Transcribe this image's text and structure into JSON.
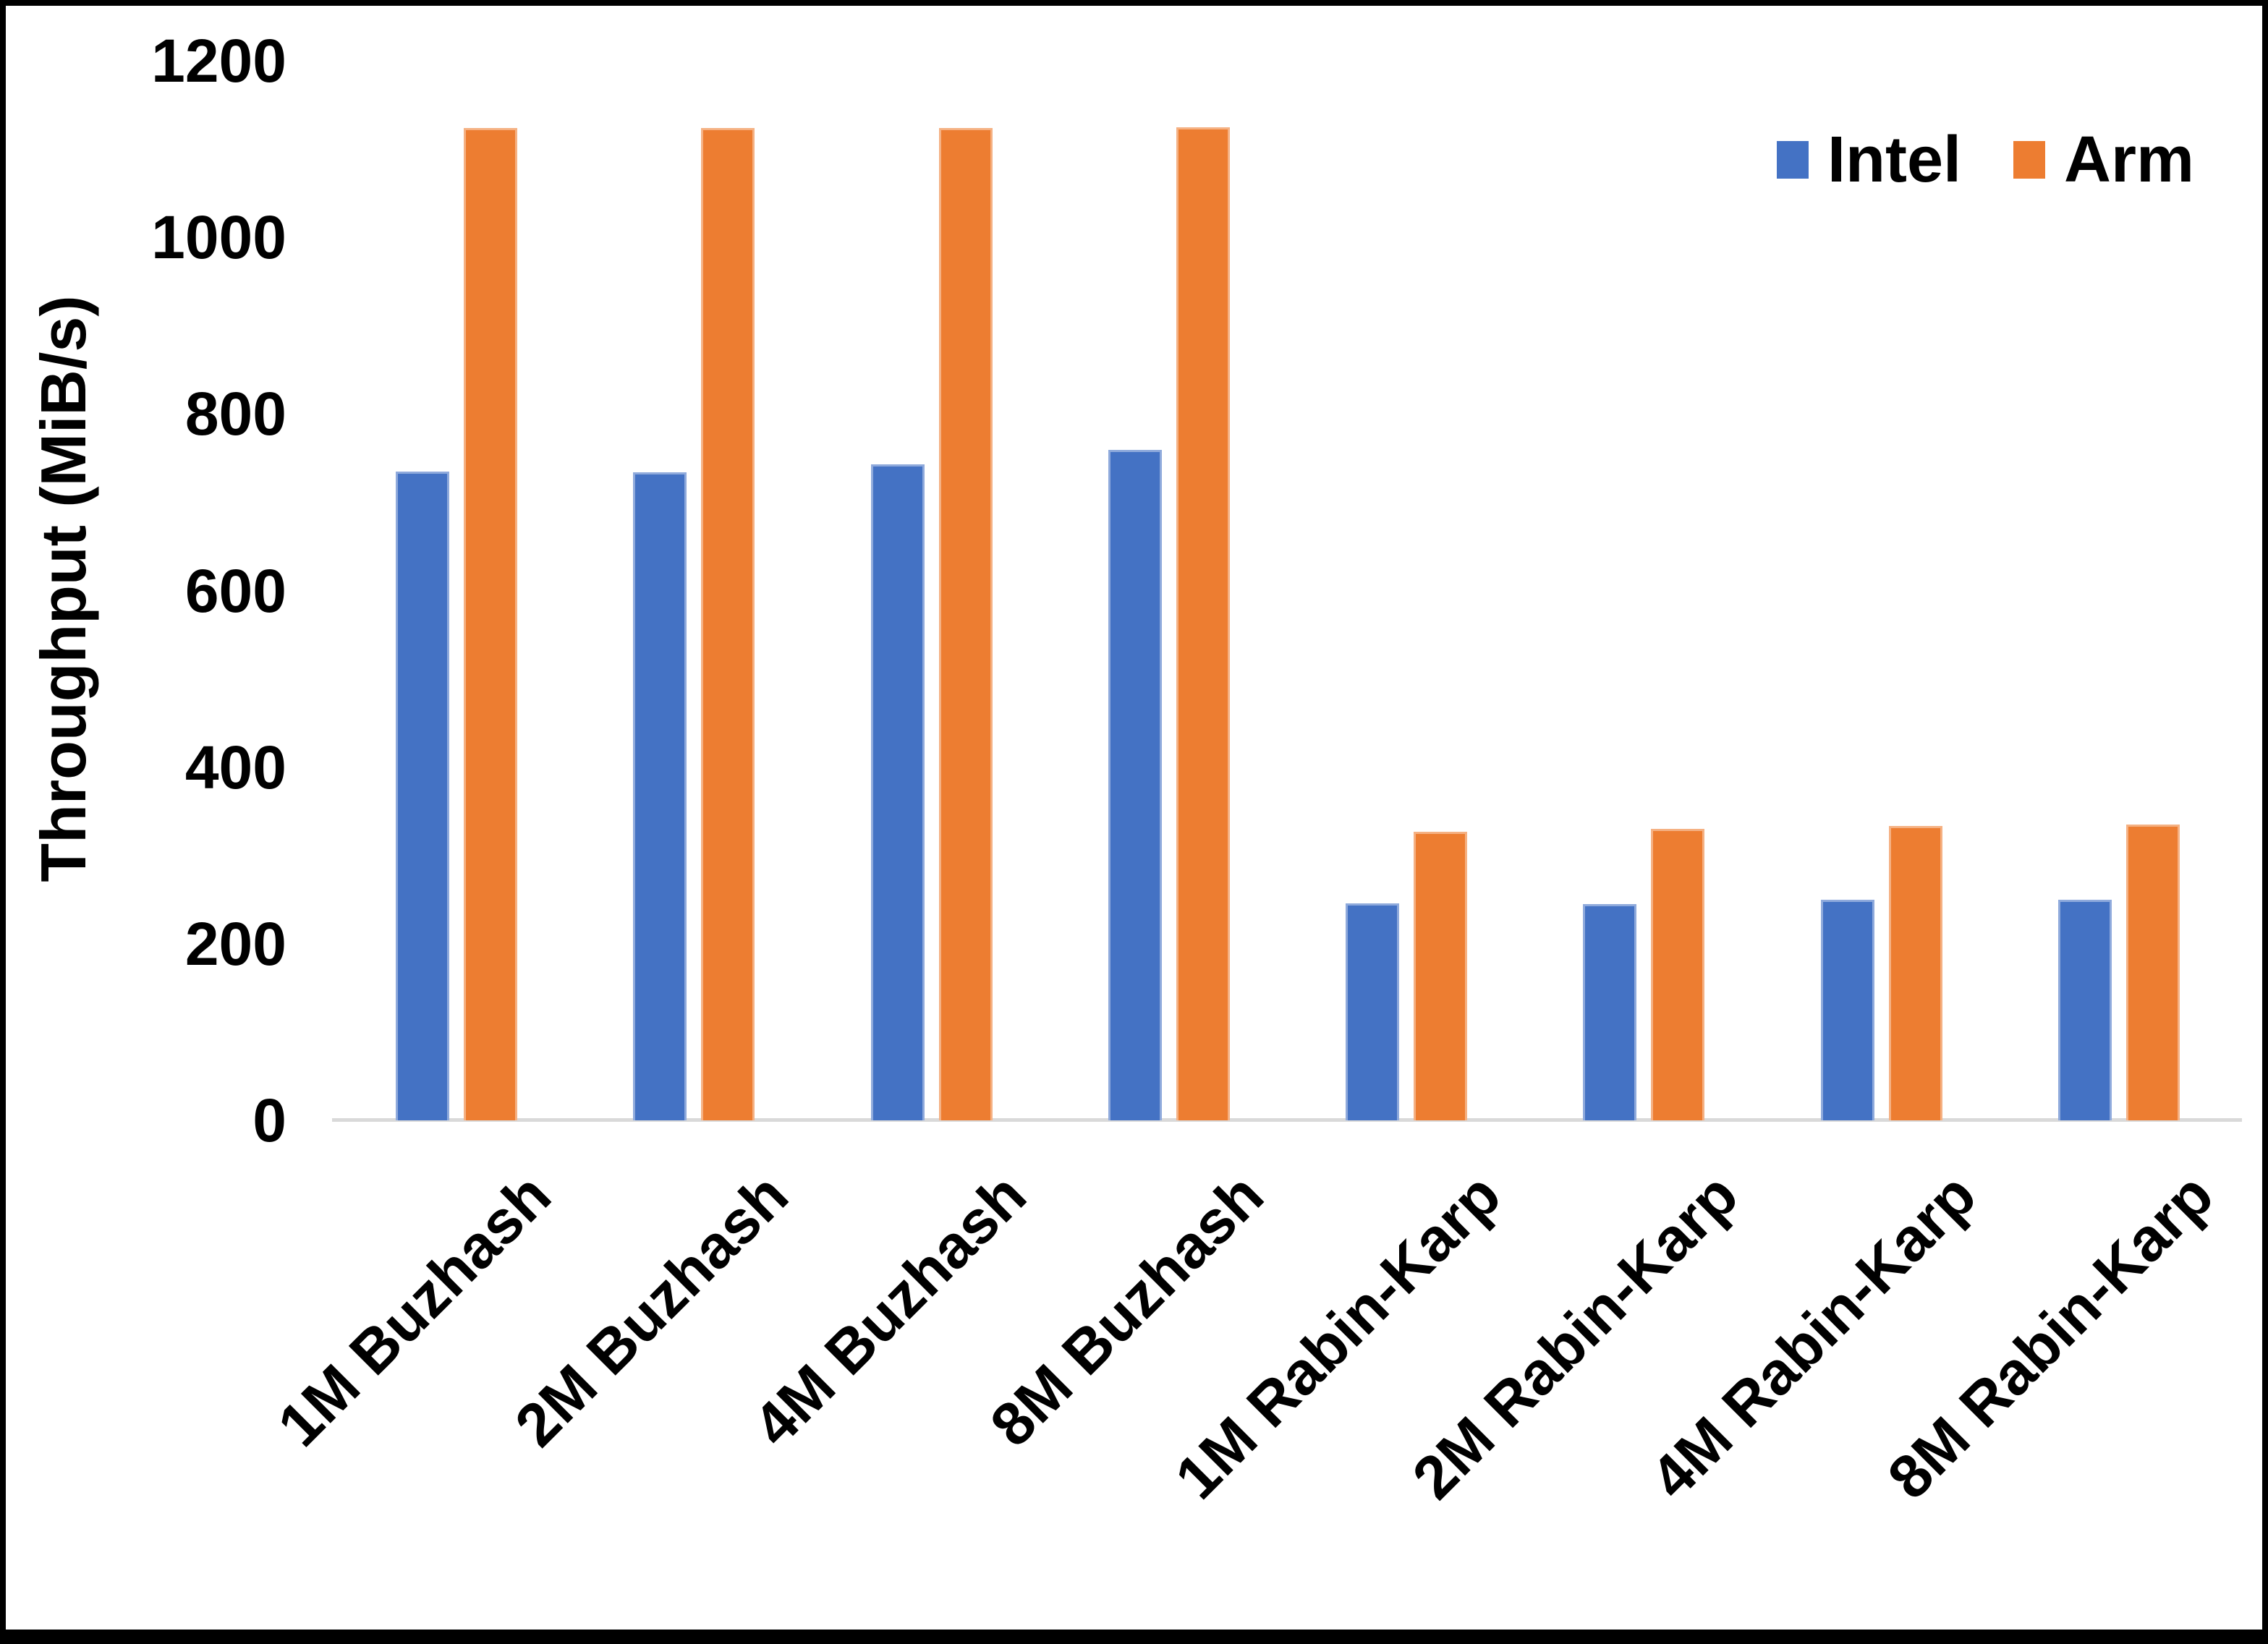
{
  "chart_data": {
    "type": "bar",
    "title": "",
    "xlabel": "",
    "ylabel": "Throughput (MiB/s)",
    "ylim": [
      0,
      1200
    ],
    "y_ticks": [
      0,
      200,
      400,
      600,
      800,
      1000,
      1200
    ],
    "grid": false,
    "legend_position": "top-right",
    "background_color": "#FFFFFF",
    "axis_line_color": "#D9D9D9",
    "frame_border_color": "#000000",
    "categories": [
      "1M Buzhash",
      "2M Buzhash",
      "4M Buzhash",
      "8M Buzhash",
      "1M Rabin-Karp",
      "2M Rabin-Karp",
      "4M Rabin-Karp",
      "8M Rabin-Karp"
    ],
    "series": [
      {
        "name": "Intel",
        "color": "#4472C4",
        "edge_color": "#8FAADC",
        "values": [
          735,
          734,
          743,
          759,
          246,
          245,
          250,
          250
        ]
      },
      {
        "name": "Arm",
        "color": "#ED7D31",
        "edge_color": "#F5B183",
        "values": [
          1124,
          1124,
          1124,
          1125,
          327,
          330,
          333,
          335
        ]
      }
    ]
  }
}
